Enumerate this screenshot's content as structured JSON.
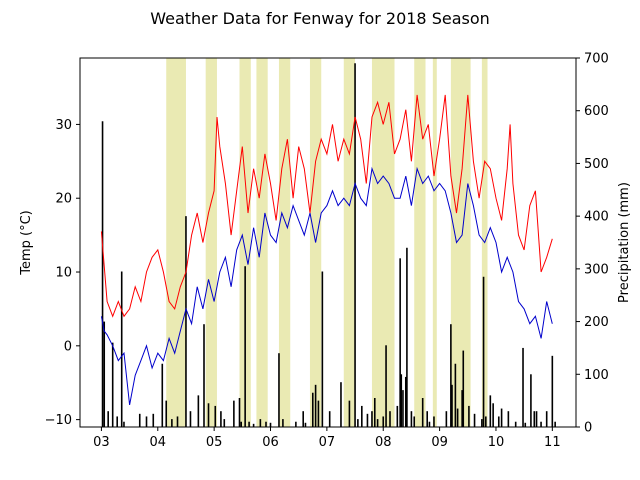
{
  "chart_data": {
    "type": "line",
    "title": "Weather Data for Fenway for 2018 Season",
    "ylabel": "Temp ($^\\circ$C)",
    "ylabel_display": "Temp (°C)",
    "y2label": "Precipitation (mm)",
    "x_ticks": [
      "03",
      "04",
      "05",
      "06",
      "07",
      "08",
      "09",
      "10",
      "11"
    ],
    "x_tick_months": [
      3,
      4,
      5,
      6,
      7,
      8,
      9,
      10,
      11
    ],
    "xlim_months": [
      2.62,
      11.42
    ],
    "ylim": [
      -11,
      39
    ],
    "y_ticks": [
      -10,
      0,
      10,
      20,
      30
    ],
    "y2lim": [
      0,
      700
    ],
    "y2_ticks": [
      0,
      100,
      200,
      300,
      400,
      500,
      600,
      700
    ],
    "colors": {
      "max_temp": "#ff0000",
      "min_temp": "#0000cc",
      "precip": "#000000",
      "span": "#dede8a"
    },
    "series": [
      {
        "key": "max_temp",
        "points": [
          [
            3.0,
            15.5
          ],
          [
            3.1,
            6
          ],
          [
            3.2,
            4
          ],
          [
            3.3,
            6
          ],
          [
            3.4,
            4
          ],
          [
            3.5,
            5
          ],
          [
            3.6,
            8
          ],
          [
            3.7,
            6
          ],
          [
            3.8,
            10
          ],
          [
            3.9,
            12
          ],
          [
            4.0,
            13
          ],
          [
            4.1,
            10
          ],
          [
            4.2,
            6
          ],
          [
            4.3,
            5
          ],
          [
            4.4,
            8
          ],
          [
            4.5,
            10
          ],
          [
            4.6,
            15
          ],
          [
            4.7,
            18
          ],
          [
            4.8,
            14
          ],
          [
            4.9,
            18
          ],
          [
            5.0,
            21
          ],
          [
            5.05,
            31
          ],
          [
            5.1,
            27
          ],
          [
            5.2,
            22
          ],
          [
            5.3,
            15
          ],
          [
            5.4,
            21
          ],
          [
            5.5,
            27
          ],
          [
            5.6,
            18
          ],
          [
            5.7,
            24
          ],
          [
            5.8,
            20
          ],
          [
            5.9,
            26
          ],
          [
            6.0,
            22
          ],
          [
            6.1,
            17
          ],
          [
            6.2,
            24
          ],
          [
            6.3,
            28
          ],
          [
            6.4,
            20
          ],
          [
            6.5,
            27
          ],
          [
            6.6,
            24
          ],
          [
            6.7,
            18
          ],
          [
            6.8,
            25
          ],
          [
            6.9,
            28
          ],
          [
            7.0,
            26
          ],
          [
            7.1,
            30
          ],
          [
            7.2,
            25
          ],
          [
            7.3,
            28
          ],
          [
            7.4,
            26
          ],
          [
            7.5,
            31
          ],
          [
            7.6,
            28
          ],
          [
            7.7,
            22
          ],
          [
            7.8,
            31
          ],
          [
            7.9,
            33
          ],
          [
            8.0,
            30
          ],
          [
            8.1,
            33
          ],
          [
            8.2,
            26
          ],
          [
            8.3,
            28
          ],
          [
            8.4,
            32
          ],
          [
            8.5,
            25
          ],
          [
            8.6,
            34
          ],
          [
            8.7,
            28
          ],
          [
            8.8,
            30
          ],
          [
            8.9,
            23
          ],
          [
            9.0,
            28
          ],
          [
            9.1,
            34
          ],
          [
            9.2,
            23
          ],
          [
            9.3,
            18
          ],
          [
            9.4,
            24
          ],
          [
            9.5,
            34
          ],
          [
            9.6,
            25
          ],
          [
            9.7,
            20
          ],
          [
            9.8,
            25
          ],
          [
            9.9,
            24
          ],
          [
            10.0,
            20
          ],
          [
            10.1,
            17
          ],
          [
            10.2,
            24
          ],
          [
            10.25,
            30
          ],
          [
            10.3,
            22
          ],
          [
            10.4,
            15
          ],
          [
            10.5,
            13
          ],
          [
            10.6,
            19
          ],
          [
            10.7,
            21
          ],
          [
            10.8,
            10
          ],
          [
            10.9,
            12
          ],
          [
            11.0,
            14.5
          ]
        ]
      },
      {
        "key": "min_temp",
        "points": [
          [
            3.0,
            4
          ],
          [
            3.05,
            2
          ],
          [
            3.1,
            1.5
          ],
          [
            3.2,
            0
          ],
          [
            3.3,
            -2
          ],
          [
            3.4,
            -1
          ],
          [
            3.5,
            -8
          ],
          [
            3.6,
            -4
          ],
          [
            3.7,
            -2
          ],
          [
            3.8,
            0
          ],
          [
            3.9,
            -3
          ],
          [
            4.0,
            -1
          ],
          [
            4.1,
            -2
          ],
          [
            4.2,
            1
          ],
          [
            4.3,
            -1
          ],
          [
            4.4,
            2
          ],
          [
            4.5,
            5
          ],
          [
            4.6,
            3
          ],
          [
            4.7,
            8
          ],
          [
            4.8,
            5
          ],
          [
            4.9,
            9
          ],
          [
            5.0,
            6
          ],
          [
            5.1,
            10
          ],
          [
            5.2,
            12
          ],
          [
            5.3,
            8
          ],
          [
            5.4,
            13
          ],
          [
            5.5,
            15
          ],
          [
            5.6,
            11
          ],
          [
            5.7,
            16
          ],
          [
            5.8,
            12
          ],
          [
            5.9,
            18
          ],
          [
            6.0,
            15
          ],
          [
            6.1,
            14
          ],
          [
            6.2,
            18
          ],
          [
            6.3,
            16
          ],
          [
            6.4,
            19
          ],
          [
            6.5,
            17
          ],
          [
            6.6,
            15
          ],
          [
            6.7,
            18
          ],
          [
            6.8,
            14
          ],
          [
            6.9,
            18
          ],
          [
            7.0,
            19
          ],
          [
            7.1,
            21
          ],
          [
            7.2,
            19
          ],
          [
            7.3,
            20
          ],
          [
            7.4,
            19
          ],
          [
            7.5,
            22
          ],
          [
            7.6,
            20
          ],
          [
            7.7,
            19
          ],
          [
            7.8,
            24
          ],
          [
            7.9,
            22
          ],
          [
            8.0,
            23
          ],
          [
            8.1,
            22
          ],
          [
            8.2,
            20
          ],
          [
            8.3,
            20
          ],
          [
            8.4,
            23
          ],
          [
            8.5,
            19
          ],
          [
            8.6,
            24
          ],
          [
            8.7,
            22
          ],
          [
            8.8,
            23
          ],
          [
            8.9,
            21
          ],
          [
            9.0,
            22
          ],
          [
            9.1,
            21
          ],
          [
            9.2,
            18
          ],
          [
            9.3,
            14
          ],
          [
            9.4,
            15
          ],
          [
            9.5,
            22
          ],
          [
            9.6,
            19
          ],
          [
            9.7,
            15
          ],
          [
            9.8,
            14
          ],
          [
            9.9,
            16
          ],
          [
            10.0,
            14
          ],
          [
            10.1,
            10
          ],
          [
            10.2,
            12
          ],
          [
            10.3,
            10
          ],
          [
            10.4,
            6
          ],
          [
            10.5,
            5
          ],
          [
            10.6,
            3
          ],
          [
            10.7,
            4
          ],
          [
            10.8,
            1
          ],
          [
            10.9,
            6
          ],
          [
            11.0,
            3
          ]
        ]
      },
      {
        "key": "precip",
        "bars": [
          [
            3.02,
            580
          ],
          [
            3.05,
            200
          ],
          [
            3.12,
            30
          ],
          [
            3.2,
            160
          ],
          [
            3.28,
            20
          ],
          [
            3.36,
            295
          ],
          [
            3.4,
            10
          ],
          [
            3.68,
            25
          ],
          [
            3.8,
            20
          ],
          [
            3.92,
            25
          ],
          [
            4.08,
            120
          ],
          [
            4.15,
            50
          ],
          [
            4.25,
            15
          ],
          [
            4.35,
            20
          ],
          [
            4.5,
            400
          ],
          [
            4.58,
            30
          ],
          [
            4.72,
            60
          ],
          [
            4.82,
            195
          ],
          [
            4.9,
            45
          ],
          [
            5.02,
            40
          ],
          [
            5.12,
            30
          ],
          [
            5.18,
            15
          ],
          [
            5.35,
            50
          ],
          [
            5.45,
            55
          ],
          [
            5.48,
            10
          ],
          [
            5.55,
            305
          ],
          [
            5.62,
            10
          ],
          [
            5.7,
            6
          ],
          [
            5.82,
            15
          ],
          [
            5.92,
            10
          ],
          [
            6.0,
            8
          ],
          [
            6.15,
            140
          ],
          [
            6.22,
            15
          ],
          [
            6.45,
            10
          ],
          [
            6.58,
            30
          ],
          [
            6.62,
            8
          ],
          [
            6.75,
            65
          ],
          [
            6.8,
            80
          ],
          [
            6.85,
            50
          ],
          [
            6.92,
            295
          ],
          [
            7.05,
            30
          ],
          [
            7.25,
            85
          ],
          [
            7.4,
            50
          ],
          [
            7.5,
            690
          ],
          [
            7.55,
            15
          ],
          [
            7.62,
            40
          ],
          [
            7.72,
            25
          ],
          [
            7.8,
            30
          ],
          [
            7.85,
            55
          ],
          [
            7.9,
            15
          ],
          [
            8.0,
            20
          ],
          [
            8.05,
            155
          ],
          [
            8.12,
            30
          ],
          [
            8.25,
            40
          ],
          [
            8.3,
            320
          ],
          [
            8.32,
            100
          ],
          [
            8.35,
            70
          ],
          [
            8.4,
            95
          ],
          [
            8.42,
            340
          ],
          [
            8.5,
            30
          ],
          [
            8.55,
            20
          ],
          [
            8.7,
            55
          ],
          [
            8.78,
            30
          ],
          [
            8.82,
            10
          ],
          [
            8.9,
            20
          ],
          [
            9.12,
            30
          ],
          [
            9.2,
            195
          ],
          [
            9.22,
            80
          ],
          [
            9.28,
            120
          ],
          [
            9.32,
            35
          ],
          [
            9.4,
            70
          ],
          [
            9.42,
            145
          ],
          [
            9.52,
            40
          ],
          [
            9.62,
            25
          ],
          [
            9.75,
            15
          ],
          [
            9.78,
            285
          ],
          [
            9.82,
            20
          ],
          [
            9.9,
            60
          ],
          [
            9.95,
            45
          ],
          [
            10.05,
            20
          ],
          [
            10.1,
            35
          ],
          [
            10.22,
            30
          ],
          [
            10.35,
            10
          ],
          [
            10.48,
            150
          ],
          [
            10.52,
            8
          ],
          [
            10.62,
            100
          ],
          [
            10.68,
            30
          ],
          [
            10.72,
            30
          ],
          [
            10.8,
            10
          ],
          [
            10.9,
            30
          ],
          [
            11.0,
            135
          ],
          [
            11.05,
            10
          ]
        ]
      }
    ],
    "shaded_spans": [
      [
        4.15,
        4.5
      ],
      [
        4.85,
        5.05
      ],
      [
        5.45,
        5.65
      ],
      [
        5.75,
        5.95
      ],
      [
        6.15,
        6.35
      ],
      [
        6.7,
        6.9
      ],
      [
        7.3,
        7.5
      ],
      [
        7.8,
        8.2
      ],
      [
        8.55,
        8.75
      ],
      [
        8.88,
        8.95
      ],
      [
        9.2,
        9.55
      ],
      [
        9.75,
        9.85
      ]
    ]
  }
}
